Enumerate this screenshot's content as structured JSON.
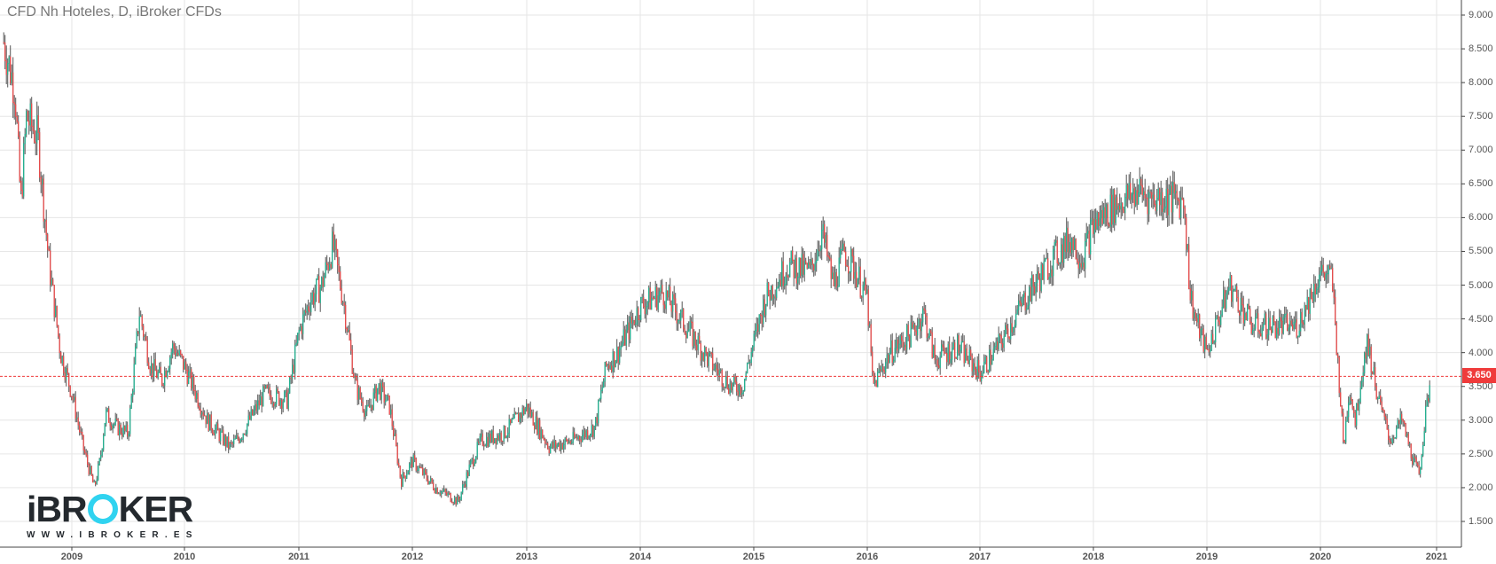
{
  "header": {
    "title": "CFD Nh Hoteles, D, iBroker CFDs"
  },
  "logo": {
    "brand_prefix": "iBR",
    "brand_o": "O",
    "brand_suffix": "KER",
    "url": "WWW.IBROKER.ES",
    "accent_color": "#30d3f0"
  },
  "last_price": {
    "label": "3.650",
    "value": 3.65,
    "color": "#ef3b3b"
  },
  "colors": {
    "up": "#17b38f",
    "down": "#ef4444",
    "wick": "#555555",
    "grid": "#e6e6e6",
    "axis": "#444444"
  },
  "y_axis": {
    "ticks": [
      "9.000",
      "8.500",
      "8.000",
      "7.500",
      "7.000",
      "6.500",
      "6.000",
      "5.500",
      "5.000",
      "4.500",
      "4.000",
      "3.500",
      "3.000",
      "2.500",
      "2.000",
      "1.500"
    ]
  },
  "x_axis": {
    "ticks": [
      "2009",
      "2010",
      "2011",
      "2012",
      "2013",
      "2014",
      "2015",
      "2016",
      "2017",
      "2018",
      "2019",
      "2020",
      "2021"
    ]
  },
  "chart_data": {
    "type": "candlestick",
    "title": "CFD Nh Hoteles, D, iBroker CFDs",
    "xlabel": "",
    "ylabel": "",
    "ylim": [
      1.25,
      9.2
    ],
    "grid": true,
    "legend": "none",
    "interval": "D",
    "last_price": 3.65,
    "y_ticks": [
      9.0,
      8.5,
      8.0,
      7.5,
      7.0,
      6.5,
      6.0,
      5.5,
      5.0,
      4.5,
      4.0,
      3.5,
      3.0,
      2.5,
      2.0,
      1.5
    ],
    "x_ticks": [
      "2009",
      "2010",
      "2011",
      "2012",
      "2013",
      "2014",
      "2015",
      "2016",
      "2017",
      "2018",
      "2019",
      "2020",
      "2021"
    ],
    "approx_close_path": {
      "x": [
        "2008.4",
        "2008.5",
        "2008.55",
        "2008.6",
        "2008.7",
        "2008.8",
        "2008.9",
        "2009.0",
        "2009.1",
        "2009.2",
        "2009.25",
        "2009.3",
        "2009.4",
        "2009.5",
        "2009.6",
        "2009.7",
        "2009.8",
        "2009.9",
        "2010.0",
        "2010.2",
        "2010.4",
        "2010.5",
        "2010.7",
        "2010.9",
        "2011.0",
        "2011.1",
        "2011.2",
        "2011.3",
        "2011.4",
        "2011.5",
        "2011.6",
        "2011.7",
        "2011.8",
        "2011.9",
        "2012.0",
        "2012.2",
        "2012.4",
        "2012.5",
        "2012.6",
        "2012.8",
        "2013.0",
        "2013.2",
        "2013.4",
        "2013.6",
        "2013.7",
        "2013.8",
        "2014.0",
        "2014.2",
        "2014.4",
        "2014.6",
        "2014.8",
        "2014.9",
        "2015.1",
        "2015.3",
        "2015.5",
        "2015.6",
        "2015.7",
        "2015.8",
        "2015.9",
        "2016.0",
        "2016.05",
        "2016.2",
        "2016.4",
        "2016.5",
        "2016.6",
        "2016.8",
        "2017.0",
        "2017.2",
        "2017.4",
        "2017.6",
        "2017.8",
        "2017.9",
        "2018.0",
        "2018.2",
        "2018.4",
        "2018.5",
        "2018.6",
        "2018.8",
        "2018.85",
        "2018.9",
        "2019.0",
        "2019.2",
        "2019.4",
        "2019.6",
        "2019.8",
        "2020.0",
        "2020.1",
        "2020.2",
        "2020.25",
        "2020.3",
        "2020.4",
        "2020.5",
        "2020.6",
        "2020.7",
        "2020.8",
        "2020.85",
        "2020.9",
        "2020.95"
      ],
      "values": [
        8.6,
        7.9,
        6.2,
        7.5,
        7.2,
        5.3,
        4.0,
        3.4,
        2.6,
        2.0,
        2.4,
        3.1,
        2.9,
        2.8,
        4.6,
        3.8,
        3.6,
        4.1,
        3.8,
        3.0,
        2.6,
        2.8,
        3.4,
        3.3,
        4.3,
        4.8,
        5.0,
        5.6,
        4.7,
        3.5,
        3.1,
        3.5,
        3.2,
        2.1,
        2.4,
        2.0,
        1.8,
        2.3,
        2.7,
        2.8,
        3.2,
        2.6,
        2.7,
        2.9,
        3.8,
        4.0,
        4.7,
        4.9,
        4.4,
        3.9,
        3.5,
        3.5,
        4.8,
        5.3,
        5.2,
        5.8,
        5.0,
        5.5,
        5.2,
        4.8,
        3.5,
        4.0,
        4.3,
        4.6,
        3.9,
        4.1,
        3.7,
        4.2,
        4.8,
        5.3,
        5.7,
        5.4,
        5.9,
        6.2,
        6.4,
        6.3,
        6.3,
        6.25,
        4.9,
        4.5,
        4.0,
        5.0,
        4.4,
        4.4,
        4.4,
        5.2,
        5.1,
        2.6,
        3.5,
        3.0,
        4.2,
        3.3,
        2.7,
        3.0,
        2.4,
        2.2,
        3.0,
        3.65
      ]
    },
    "notable_points": {
      "start_high_2008": 8.8,
      "low_2009": 1.9,
      "peak_2011": 6.3,
      "low_2012": 1.7,
      "peak_2015": 6.0,
      "low_2016": 3.15,
      "peak_2018": 6.85,
      "low_2020": 2.1,
      "last": 3.65
    }
  }
}
